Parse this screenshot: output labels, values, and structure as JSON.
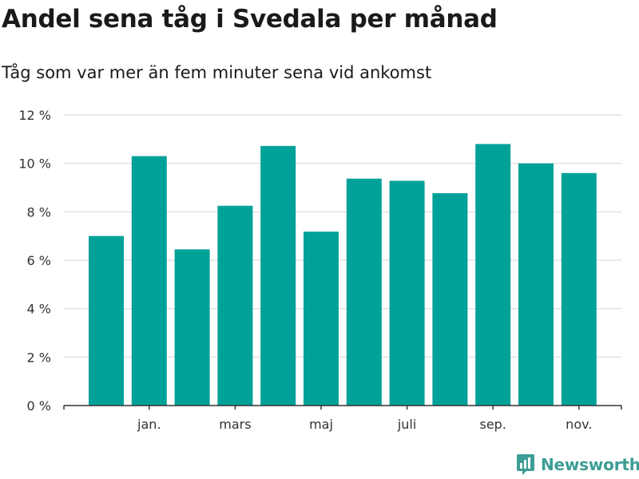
{
  "title": "Andel sena tåg i Svedala per månad",
  "subtitle": "Tåg som var mer än fem minuter sena vid ankomst",
  "brand": "Newsworthy",
  "colors": {
    "bar": "#00a199",
    "grid": "#dcdcdc",
    "axis": "#333333",
    "brand": "#3c9d96"
  },
  "chart_data": {
    "type": "bar",
    "title": "Andel sena tåg i Svedala per månad",
    "subtitle": "Tåg som var mer än fem minuter sena vid ankomst",
    "xlabel": "",
    "ylabel": "",
    "ylim": [
      0,
      12
    ],
    "yticks": [
      0,
      2,
      4,
      6,
      8,
      10,
      12
    ],
    "ytick_labels": [
      "0 %",
      "2 %",
      "4 %",
      "6 %",
      "8 %",
      "10 %",
      "12 %"
    ],
    "xtick_labels": [
      "jan.",
      "mars",
      "maj",
      "juli",
      "sep.",
      "nov."
    ],
    "xtick_bar_index": [
      1,
      3,
      5,
      7,
      9,
      11
    ],
    "values": [
      7.0,
      10.3,
      6.45,
      8.25,
      10.72,
      7.18,
      9.37,
      9.28,
      8.77,
      10.8,
      10.0,
      9.6
    ]
  }
}
